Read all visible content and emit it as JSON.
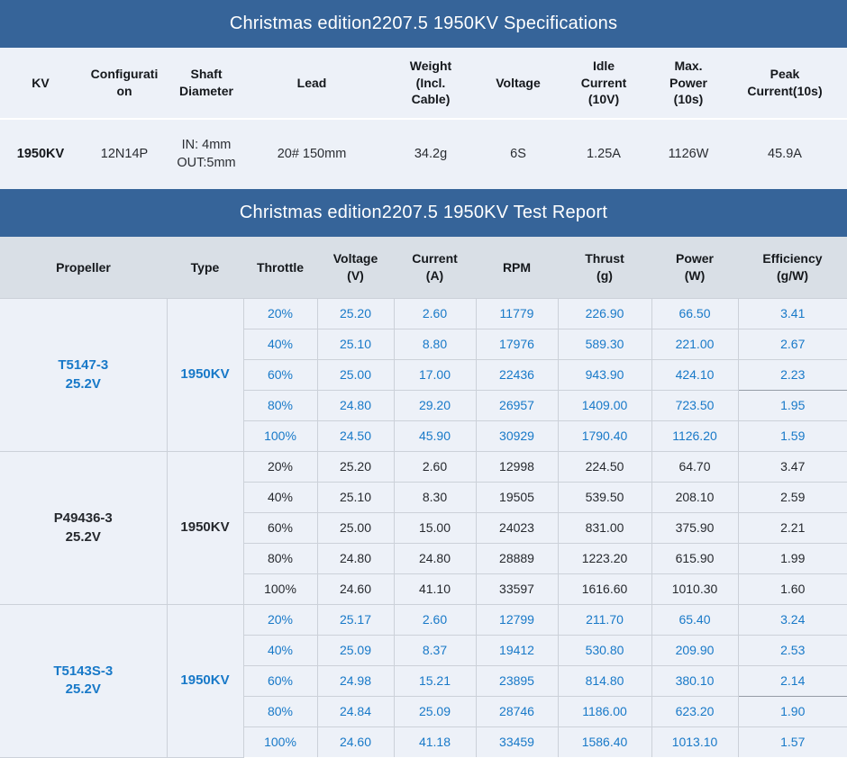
{
  "colors": {
    "title_bar": "#366499",
    "title_text": "#ffffff",
    "header_bg": "#d9dfe6",
    "body_bg": "#edf1f8",
    "border": "#ccd1d9",
    "blue_text": "#1879c8",
    "dark_text": "#26292e"
  },
  "spec_table": {
    "title": "Christmas edition2207.5 1950KV Specifications",
    "headers": [
      "KV",
      "Configurati\non",
      "Shaft\nDiameter",
      "Lead",
      "Weight\n(Incl.\nCable)",
      "Voltage",
      "Idle\nCurrent\n(10V)",
      "Max.\nPower\n(10s)",
      "Peak\nCurrent(10s)"
    ],
    "values": [
      "1950KV",
      "12N14P",
      "IN: 4mm\nOUT:5mm",
      "20# 150mm",
      "34.2g",
      "6S",
      "1.25A",
      "1126W",
      "45.9A"
    ]
  },
  "test_table": {
    "title": "Christmas edition2207.5 1950KV Test Report",
    "headers": [
      "Propeller",
      "Type",
      "Throttle",
      "Voltage\n(V)",
      "Current\n(A)",
      "RPM",
      "Thrust\n(g)",
      "Power\n(W)",
      "Efficiency\n(g/W)"
    ],
    "groups": [
      {
        "propeller": "T5147-3\n25.2V",
        "type": "1950KV",
        "text_color": "blue",
        "rows": [
          {
            "throttle": "20%",
            "voltage": "25.20",
            "current": "2.60",
            "rpm": "11779",
            "thrust": "226.90",
            "power": "66.50",
            "efficiency": "3.41"
          },
          {
            "throttle": "40%",
            "voltage": "25.10",
            "current": "8.80",
            "rpm": "17976",
            "thrust": "589.30",
            "power": "221.00",
            "efficiency": "2.67"
          },
          {
            "throttle": "60%",
            "voltage": "25.00",
            "current": "17.00",
            "rpm": "22436",
            "thrust": "943.90",
            "power": "424.10",
            "efficiency": "2.23",
            "eff_boxed": true
          },
          {
            "throttle": "80%",
            "voltage": "24.80",
            "current": "29.20",
            "rpm": "26957",
            "thrust": "1409.00",
            "power": "723.50",
            "efficiency": "1.95"
          },
          {
            "throttle": "100%",
            "voltage": "24.50",
            "current": "45.90",
            "rpm": "30929",
            "thrust": "1790.40",
            "power": "1126.20",
            "efficiency": "1.59"
          }
        ]
      },
      {
        "propeller": "P49436-3\n25.2V",
        "type": "1950KV",
        "text_color": "dark",
        "rows": [
          {
            "throttle": "20%",
            "voltage": "25.20",
            "current": "2.60",
            "rpm": "12998",
            "thrust": "224.50",
            "power": "64.70",
            "efficiency": "3.47"
          },
          {
            "throttle": "40%",
            "voltage": "25.10",
            "current": "8.30",
            "rpm": "19505",
            "thrust": "539.50",
            "power": "208.10",
            "efficiency": "2.59"
          },
          {
            "throttle": "60%",
            "voltage": "25.00",
            "current": "15.00",
            "rpm": "24023",
            "thrust": "831.00",
            "power": "375.90",
            "efficiency": "2.21"
          },
          {
            "throttle": "80%",
            "voltage": "24.80",
            "current": "24.80",
            "rpm": "28889",
            "thrust": "1223.20",
            "power": "615.90",
            "efficiency": "1.99"
          },
          {
            "throttle": "100%",
            "voltage": "24.60",
            "current": "41.10",
            "rpm": "33597",
            "thrust": "1616.60",
            "power": "1010.30",
            "efficiency": "1.60"
          }
        ]
      },
      {
        "propeller": "T5143S-3\n25.2V",
        "type": "1950KV",
        "text_color": "blue",
        "rows": [
          {
            "throttle": "20%",
            "voltage": "25.17",
            "current": "2.60",
            "rpm": "12799",
            "thrust": "211.70",
            "power": "65.40",
            "efficiency": "3.24"
          },
          {
            "throttle": "40%",
            "voltage": "25.09",
            "current": "8.37",
            "rpm": "19412",
            "thrust": "530.80",
            "power": "209.90",
            "efficiency": "2.53"
          },
          {
            "throttle": "60%",
            "voltage": "24.98",
            "current": "15.21",
            "rpm": "23895",
            "thrust": "814.80",
            "power": "380.10",
            "efficiency": "2.14",
            "eff_boxed": true
          },
          {
            "throttle": "80%",
            "voltage": "24.84",
            "current": "25.09",
            "rpm": "28746",
            "thrust": "1186.00",
            "power": "623.20",
            "efficiency": "1.90"
          },
          {
            "throttle": "100%",
            "voltage": "24.60",
            "current": "41.18",
            "rpm": "33459",
            "thrust": "1586.40",
            "power": "1013.10",
            "efficiency": "1.57"
          }
        ]
      }
    ]
  }
}
